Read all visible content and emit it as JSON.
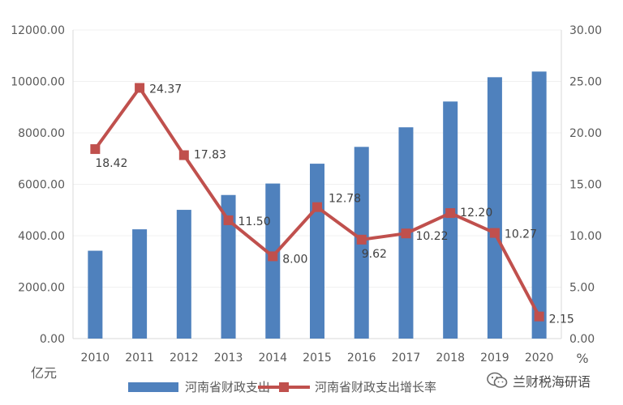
{
  "chart_data": {
    "type": "bar+line",
    "categories": [
      "2010",
      "2011",
      "2012",
      "2013",
      "2014",
      "2015",
      "2016",
      "2017",
      "2018",
      "2019",
      "2020"
    ],
    "series": [
      {
        "name": "河南省财政支出",
        "type": "bar",
        "axis": "left",
        "color": "#4f81bd",
        "values": [
          3416,
          4249,
          5006,
          5583,
          6029,
          6800,
          7454,
          8215,
          9218,
          10163,
          10383
        ]
      },
      {
        "name": "河南省财政支出增长率",
        "type": "line",
        "axis": "right",
        "color": "#c0504d",
        "values": [
          18.42,
          24.37,
          17.83,
          11.5,
          8.0,
          12.78,
          9.62,
          10.22,
          12.2,
          10.27,
          2.15
        ],
        "labels": [
          "18.42",
          "24.37",
          "17.83",
          "11.50",
          "8.00",
          "12.78",
          "9.62",
          "10.22",
          "12.20",
          "10.27",
          "2.15"
        ]
      }
    ],
    "y_left": {
      "label": "亿元",
      "ylim": [
        0,
        12000
      ],
      "ticks": [
        "0.00",
        "2000.00",
        "4000.00",
        "6000.00",
        "8000.00",
        "10000.00",
        "12000.00"
      ]
    },
    "y_right": {
      "label": "%",
      "ylim": [
        0,
        30
      ],
      "ticks": [
        "0.00",
        "5.00",
        "10.00",
        "15.00",
        "20.00",
        "25.00",
        "30.00"
      ]
    },
    "grid": true,
    "legend": "bottom"
  },
  "watermark": {
    "text": "兰财税海研语",
    "icon": "wechat-icon"
  }
}
